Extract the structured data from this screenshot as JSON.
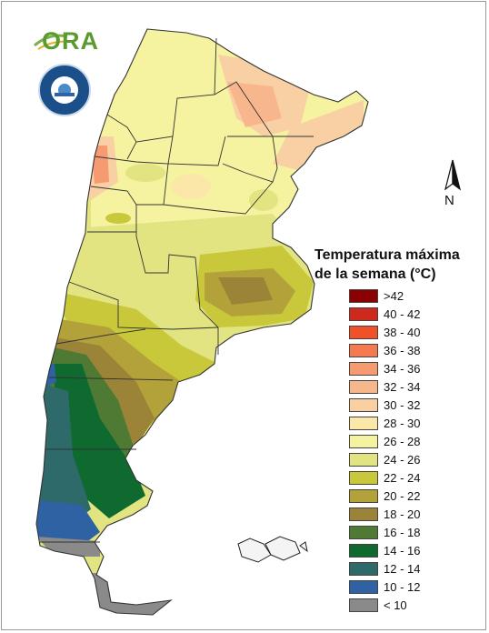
{
  "logo": {
    "text": "ORA",
    "seal_text": "SERVICIO METEOROLÓGICO NACIONAL · ARGENTINA"
  },
  "compass": {
    "label": "N"
  },
  "legend": {
    "title_line1": "Temperatura máxima",
    "title_line2": "de la semana (°C)",
    "items": [
      {
        "label": ">42",
        "color": "#8b0000"
      },
      {
        "label": "40 - 42",
        "color": "#cc2a1c"
      },
      {
        "label": "38 - 40",
        "color": "#f0502a"
      },
      {
        "label": "36 - 38",
        "color": "#f47a50"
      },
      {
        "label": "34 - 36",
        "color": "#f69a72"
      },
      {
        "label": "32 - 34",
        "color": "#f8b68c"
      },
      {
        "label": "30 - 32",
        "color": "#f9d0a4"
      },
      {
        "label": "28 - 30",
        "color": "#fbe7a8"
      },
      {
        "label": "26 - 28",
        "color": "#f5f2a0"
      },
      {
        "label": "24 - 26",
        "color": "#e2e482"
      },
      {
        "label": "22 - 24",
        "color": "#c8c83a"
      },
      {
        "label": "20 - 22",
        "color": "#b3a23a"
      },
      {
        "label": "18 - 20",
        "color": "#9b8438"
      },
      {
        "label": "16 - 18",
        "color": "#4f7a34"
      },
      {
        "label": "14 - 16",
        "color": "#0e6a2e"
      },
      {
        "label": "12 - 14",
        "color": "#2e6a6a"
      },
      {
        "label": "10 - 12",
        "color": "#2e62a2"
      },
      {
        "label": "< 10",
        "color": "#8a8a8a"
      }
    ]
  }
}
